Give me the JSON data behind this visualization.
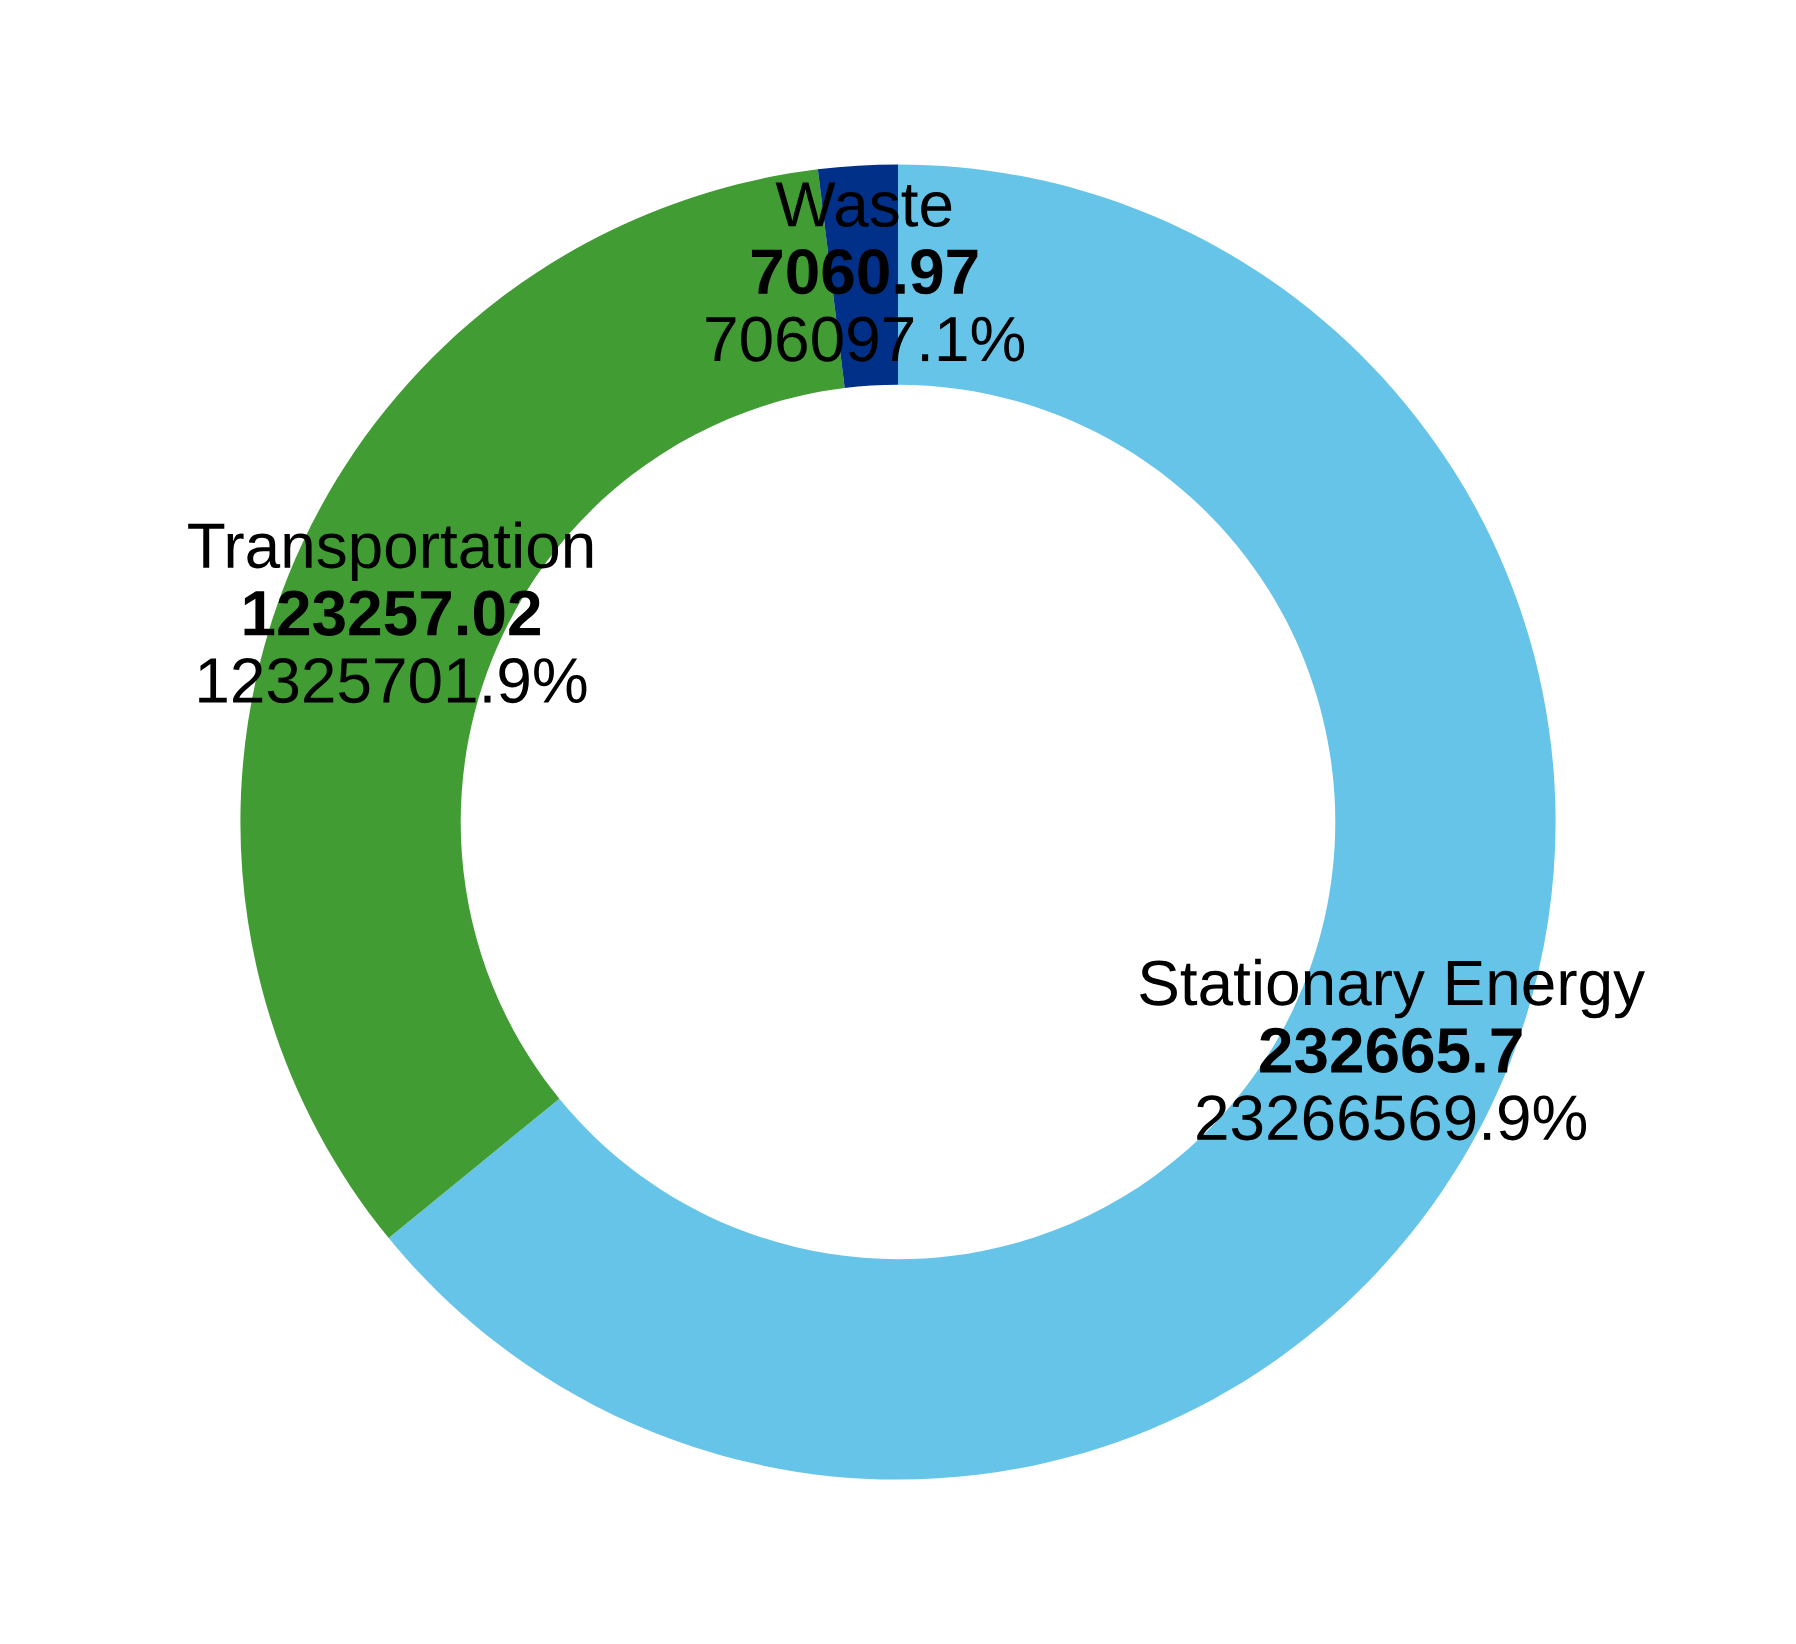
{
  "chart_data": {
    "type": "donut",
    "categories": [
      "Stationary Energy",
      "Transportation",
      "Waste"
    ],
    "values": [
      232665.7,
      123257.02,
      7060.97
    ],
    "colors": [
      "#66c4e8",
      "#419c34",
      "#003088"
    ],
    "value_labels": [
      "232665.7",
      "123257.02",
      "7060.97"
    ],
    "annotations": [
      {
        "text": "23266569.9%",
        "x": "Stationary Energy"
      },
      {
        "text": "12325701.9%",
        "x": "Transportation"
      },
      {
        "text": "706097.1%",
        "x": "Waste"
      }
    ],
    "legend": false
  }
}
